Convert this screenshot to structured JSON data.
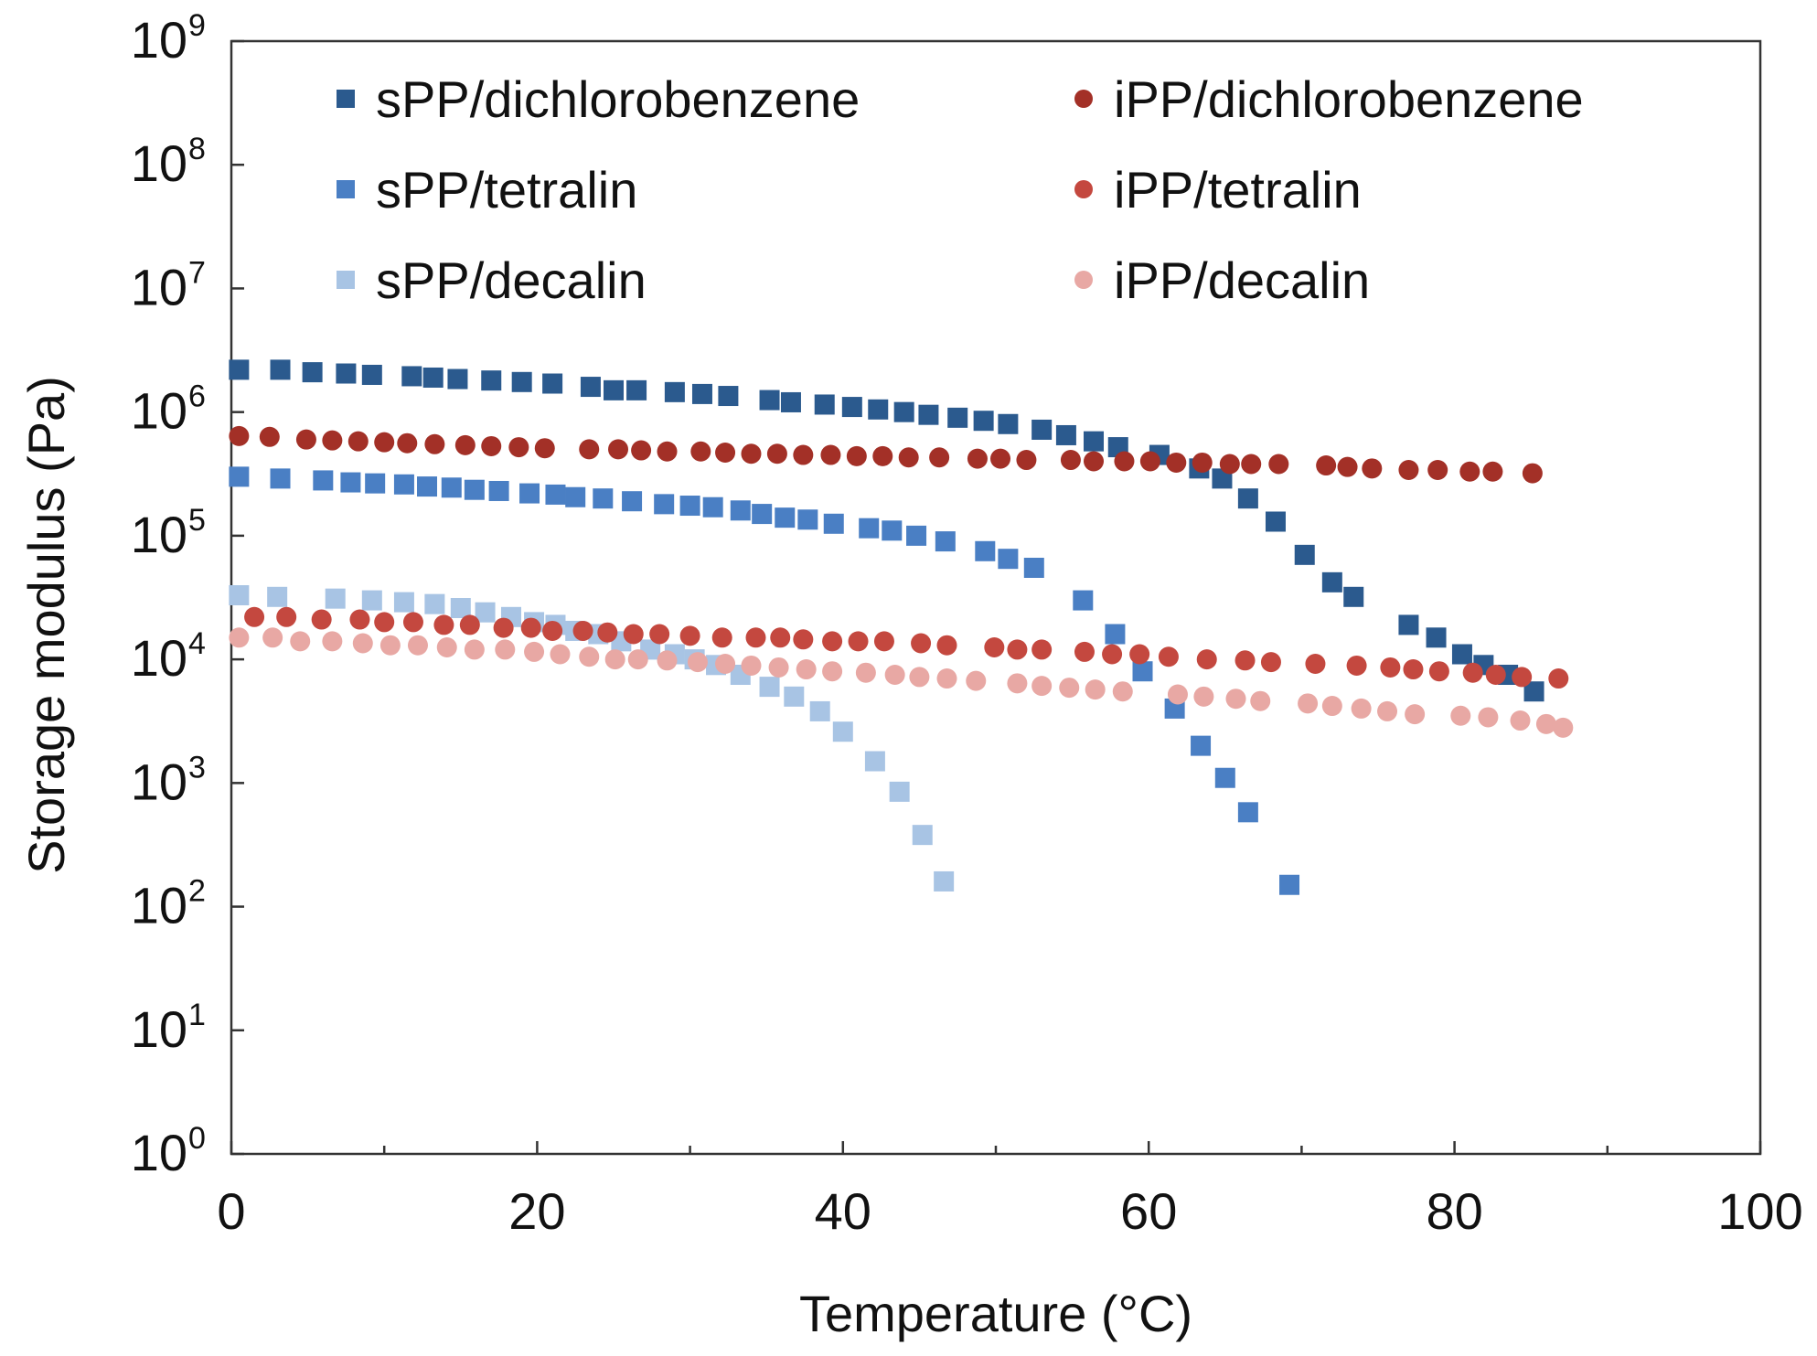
{
  "chart_data": {
    "type": "scatter",
    "xlabel": "Temperature (°C)",
    "ylabel": "Storage modulus (Pa)",
    "xlim": [
      0,
      100
    ],
    "ylim_log10": [
      0,
      9
    ],
    "y_scale": "log",
    "grid": false,
    "legend_position": "top",
    "x_ticks": [
      "0",
      "20",
      "40",
      "60",
      "80",
      "100"
    ],
    "y_ticks": [
      {
        "base": "10",
        "exp": "0"
      },
      {
        "base": "10",
        "exp": "1"
      },
      {
        "base": "10",
        "exp": "2"
      },
      {
        "base": "10",
        "exp": "3"
      },
      {
        "base": "10",
        "exp": "4"
      },
      {
        "base": "10",
        "exp": "5"
      },
      {
        "base": "10",
        "exp": "6"
      },
      {
        "base": "10",
        "exp": "7"
      },
      {
        "base": "10",
        "exp": "8"
      },
      {
        "base": "10",
        "exp": "9"
      }
    ],
    "series": [
      {
        "name": "sPP/dichlorobenzene",
        "marker": "square",
        "color": "#2b5a8e",
        "points": [
          [
            0.5,
            2200000.0
          ],
          [
            3.2,
            2200000.0
          ],
          [
            5.3,
            2100000.0
          ],
          [
            7.5,
            2050000.0
          ],
          [
            9.2,
            2000000.0
          ],
          [
            11.8,
            1950000.0
          ],
          [
            13.2,
            1900000.0
          ],
          [
            14.8,
            1850000.0
          ],
          [
            17,
            1800000.0
          ],
          [
            19,
            1750000.0
          ],
          [
            21,
            1700000.0
          ],
          [
            23.5,
            1600000.0
          ],
          [
            25,
            1500000.0
          ],
          [
            26.5,
            1500000.0
          ],
          [
            29,
            1450000.0
          ],
          [
            30.8,
            1400000.0
          ],
          [
            32.5,
            1350000.0
          ],
          [
            35.2,
            1250000.0
          ],
          [
            36.6,
            1200000.0
          ],
          [
            38.8,
            1150000.0
          ],
          [
            40.6,
            1100000.0
          ],
          [
            42.3,
            1050000.0
          ],
          [
            44,
            1000000.0
          ],
          [
            45.6,
            950000.0
          ],
          [
            47.5,
            900000.0
          ],
          [
            49.2,
            850000.0
          ],
          [
            50.8,
            800000.0
          ],
          [
            53,
            720000.0
          ],
          [
            54.6,
            650000.0
          ],
          [
            56.4,
            580000.0
          ],
          [
            58,
            520000.0
          ],
          [
            60.7,
            450000.0
          ],
          [
            63.3,
            350000.0
          ],
          [
            64.8,
            290000.0
          ],
          [
            66.5,
            200000.0
          ],
          [
            68.3,
            130000.0
          ],
          [
            70.2,
            70000.0
          ],
          [
            72,
            42000.0
          ],
          [
            73.4,
            32000.0
          ],
          [
            77,
            19000.0
          ],
          [
            78.8,
            15000.0
          ],
          [
            80.5,
            11000.0
          ],
          [
            81.9,
            9000.0
          ],
          [
            83.5,
            7500.0
          ],
          [
            85.2,
            5500.0
          ]
        ]
      },
      {
        "name": "sPP/tetralin",
        "marker": "square",
        "color": "#4a7fc4",
        "points": [
          [
            0.5,
            300000.0
          ],
          [
            3.2,
            290000.0
          ],
          [
            6,
            280000.0
          ],
          [
            7.8,
            270000.0
          ],
          [
            9.4,
            265000.0
          ],
          [
            11.3,
            260000.0
          ],
          [
            12.8,
            250000.0
          ],
          [
            14.4,
            245000.0
          ],
          [
            15.9,
            235000.0
          ],
          [
            17.5,
            230000.0
          ],
          [
            19.5,
            220000.0
          ],
          [
            21.2,
            215000.0
          ],
          [
            22.5,
            205000.0
          ],
          [
            24.3,
            200000.0
          ],
          [
            26.2,
            190000.0
          ],
          [
            28.3,
            180000.0
          ],
          [
            30,
            175000.0
          ],
          [
            31.5,
            170000.0
          ],
          [
            33.3,
            160000.0
          ],
          [
            34.7,
            150000.0
          ],
          [
            36.2,
            140000.0
          ],
          [
            37.7,
            135000.0
          ],
          [
            39.4,
            125000.0
          ],
          [
            41.7,
            115000.0
          ],
          [
            43.2,
            110000.0
          ],
          [
            44.8,
            100000.0
          ],
          [
            46.7,
            90000.0
          ],
          [
            49.3,
            75000.0
          ],
          [
            50.8,
            65000.0
          ],
          [
            52.5,
            55000.0
          ],
          [
            55.7,
            30000.0
          ],
          [
            57.8,
            16000.0
          ],
          [
            59.6,
            8000.0
          ],
          [
            61.7,
            4000.0
          ],
          [
            63.4,
            2000.0
          ],
          [
            65,
            1100.0
          ],
          [
            66.5,
            580.0
          ],
          [
            69.2,
            150.0
          ]
        ]
      },
      {
        "name": "sPP/decalin",
        "marker": "square",
        "color": "#a8c4e4",
        "points": [
          [
            0.5,
            33000.0
          ],
          [
            3,
            32000.0
          ],
          [
            6.8,
            31000.0
          ],
          [
            9.2,
            30000.0
          ],
          [
            11.3,
            29000.0
          ],
          [
            13.3,
            28000.0
          ],
          [
            15,
            26000.0
          ],
          [
            16.6,
            24000.0
          ],
          [
            18.3,
            22000.0
          ],
          [
            19.8,
            20000.0
          ],
          [
            21.2,
            19000.0
          ],
          [
            22.5,
            17000.0
          ],
          [
            24,
            16000.0
          ],
          [
            25.5,
            14000.0
          ],
          [
            27.4,
            12000.0
          ],
          [
            29,
            11000.0
          ],
          [
            30.3,
            10000.0
          ],
          [
            31.7,
            9000.0
          ],
          [
            33.3,
            7500.0
          ],
          [
            35.2,
            6000.0
          ],
          [
            36.8,
            5000.0
          ],
          [
            38.5,
            3800.0
          ],
          [
            40,
            2600.0
          ],
          [
            42.1,
            1500.0
          ],
          [
            43.7,
            850.0
          ],
          [
            45.2,
            380.0
          ],
          [
            46.6,
            160.0
          ]
        ]
      },
      {
        "name": "iPP/dichlorobenzene",
        "marker": "circle",
        "color": "#a33027",
        "points": [
          [
            0.5,
            640000.0
          ],
          [
            2.5,
            630000.0
          ],
          [
            4.9,
            600000.0
          ],
          [
            6.6,
            590000.0
          ],
          [
            8.3,
            580000.0
          ],
          [
            10,
            570000.0
          ],
          [
            11.5,
            560000.0
          ],
          [
            13.3,
            550000.0
          ],
          [
            15.3,
            540000.0
          ],
          [
            17,
            530000.0
          ],
          [
            18.8,
            520000.0
          ],
          [
            20.5,
            510000.0
          ],
          [
            23.4,
            500000.0
          ],
          [
            25.3,
            500000.0
          ],
          [
            26.8,
            490000.0
          ],
          [
            28.5,
            480000.0
          ],
          [
            30.7,
            480000.0
          ],
          [
            32.3,
            470000.0
          ],
          [
            34,
            460000.0
          ],
          [
            35.7,
            460000.0
          ],
          [
            37.4,
            450000.0
          ],
          [
            39.2,
            450000.0
          ],
          [
            40.9,
            440000.0
          ],
          [
            42.6,
            440000.0
          ],
          [
            44.3,
            430000.0
          ],
          [
            46.3,
            430000.0
          ],
          [
            48.8,
            420000.0
          ],
          [
            50.3,
            420000.0
          ],
          [
            52,
            410000.0
          ],
          [
            54.9,
            410000.0
          ],
          [
            56.4,
            400000.0
          ],
          [
            58.4,
            400000.0
          ],
          [
            60.1,
            400000.0
          ],
          [
            61.8,
            390000.0
          ],
          [
            63.5,
            390000.0
          ],
          [
            65.3,
            380000.0
          ],
          [
            66.7,
            380000.0
          ],
          [
            68.5,
            380000.0
          ],
          [
            71.6,
            370000.0
          ],
          [
            73,
            360000.0
          ],
          [
            74.6,
            350000.0
          ],
          [
            77,
            340000.0
          ],
          [
            78.9,
            340000.0
          ],
          [
            81,
            330000.0
          ],
          [
            82.5,
            330000.0
          ],
          [
            85.1,
            320000.0
          ]
        ]
      },
      {
        "name": "iPP/tetralin",
        "marker": "circle",
        "color": "#c4483f",
        "points": [
          [
            1.5,
            22000.0
          ],
          [
            3.6,
            22000.0
          ],
          [
            5.9,
            21000.0
          ],
          [
            8.4,
            21000.0
          ],
          [
            10,
            20000.0
          ],
          [
            11.9,
            20000.0
          ],
          [
            13.9,
            19000.0
          ],
          [
            15.6,
            19000.0
          ],
          [
            17.8,
            18000.0
          ],
          [
            19.6,
            18000.0
          ],
          [
            21,
            17000.0
          ],
          [
            23,
            17000.0
          ],
          [
            24.6,
            16500.0
          ],
          [
            26.3,
            16000.0
          ],
          [
            28,
            16000.0
          ],
          [
            30,
            15500.0
          ],
          [
            32.1,
            15000.0
          ],
          [
            34.3,
            15000.0
          ],
          [
            35.9,
            15000.0
          ],
          [
            37.4,
            14500.0
          ],
          [
            39.3,
            14000.0
          ],
          [
            41,
            14000.0
          ],
          [
            42.7,
            14000.0
          ],
          [
            45.1,
            13500.0
          ],
          [
            46.8,
            13000.0
          ],
          [
            49.9,
            12500.0
          ],
          [
            51.4,
            12000.0
          ],
          [
            53,
            12000.0
          ],
          [
            55.8,
            11500.0
          ],
          [
            57.6,
            11000.0
          ],
          [
            59.4,
            11000.0
          ],
          [
            61.3,
            10500.0
          ],
          [
            63.8,
            10000.0
          ],
          [
            66.3,
            9800.0
          ],
          [
            68,
            9500.0
          ],
          [
            70.9,
            9200.0
          ],
          [
            73.6,
            8900.0
          ],
          [
            75.8,
            8600.0
          ],
          [
            77.3,
            8300.0
          ],
          [
            79,
            8000.0
          ],
          [
            81.2,
            7800.0
          ],
          [
            82.7,
            7500.0
          ],
          [
            84.4,
            7200.0
          ],
          [
            86.8,
            7000.0
          ]
        ]
      },
      {
        "name": "iPP/decalin",
        "marker": "circle",
        "color": "#e8a8a4",
        "points": [
          [
            0.5,
            15000.0
          ],
          [
            2.7,
            15000.0
          ],
          [
            4.5,
            14000.0
          ],
          [
            6.6,
            14000.0
          ],
          [
            8.6,
            13500.0
          ],
          [
            10.4,
            13000.0
          ],
          [
            12.2,
            13000.0
          ],
          [
            14.1,
            12500.0
          ],
          [
            15.9,
            12000.0
          ],
          [
            17.9,
            12000.0
          ],
          [
            19.8,
            11500.0
          ],
          [
            21.5,
            11000.0
          ],
          [
            23.4,
            10500.0
          ],
          [
            25.1,
            10000.0
          ],
          [
            26.6,
            10000.0
          ],
          [
            28.5,
            9800.0
          ],
          [
            30.5,
            9500.0
          ],
          [
            32.3,
            9200.0
          ],
          [
            34,
            8900.0
          ],
          [
            35.8,
            8600.0
          ],
          [
            37.6,
            8300.0
          ],
          [
            39.3,
            8000.0
          ],
          [
            41.5,
            7800.0
          ],
          [
            43.4,
            7500.0
          ],
          [
            45,
            7200.0
          ],
          [
            46.8,
            7000.0
          ],
          [
            48.7,
            6700.0
          ],
          [
            51.4,
            6400.0
          ],
          [
            53,
            6100.0
          ],
          [
            54.8,
            5900.0
          ],
          [
            56.5,
            5700.0
          ],
          [
            58.3,
            5500.0
          ],
          [
            61.9,
            5200.0
          ],
          [
            63.6,
            5000.0
          ],
          [
            65.7,
            4800.0
          ],
          [
            67.3,
            4600.0
          ],
          [
            70.4,
            4400.0
          ],
          [
            72,
            4200.0
          ],
          [
            73.9,
            4000.0
          ],
          [
            75.6,
            3800.0
          ],
          [
            77.4,
            3600.0
          ],
          [
            80.4,
            3500.0
          ],
          [
            82.2,
            3400.0
          ],
          [
            84.3,
            3200.0
          ],
          [
            86,
            3000.0
          ],
          [
            87.1,
            2800.0
          ]
        ]
      }
    ]
  }
}
